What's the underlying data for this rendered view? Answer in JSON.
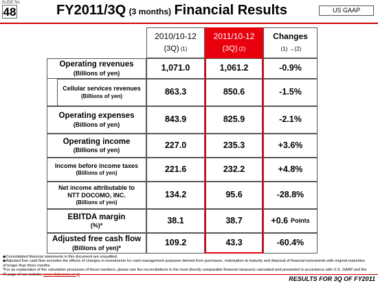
{
  "header": {
    "slide_label": "SLIDE No.",
    "slide_number": "48",
    "title_main": "FY2011/3Q",
    "title_period": "(3 months)",
    "title_rest": "Financial Results",
    "badge": "US GAAP"
  },
  "table": {
    "columns": [
      {
        "period": "2010/10-12",
        "quarter": "(3Q)",
        "note": "(1)"
      },
      {
        "period": "2011/10-12",
        "quarter": "(3Q)",
        "note": "(2)"
      },
      {
        "period": "Changes",
        "note": "(1) →(2)"
      }
    ],
    "rows": [
      {
        "label": [
          "Operating revenues"
        ],
        "unit": "(Billions of yen)",
        "values": [
          "1,071.0",
          "1,061.2",
          "-0.9%"
        ]
      },
      {
        "label": [
          "Cellular services revenues"
        ],
        "unit": "(Billions of yen)",
        "values": [
          "863.3",
          "850.6",
          "-1.5%"
        ]
      },
      {
        "label": [
          "Operating expenses"
        ],
        "unit": "(Billions of yen)",
        "values": [
          "843.9",
          "825.9",
          "-2.1%"
        ]
      },
      {
        "label": [
          "Operating income"
        ],
        "unit": "(Billions of yen)",
        "values": [
          "227.0",
          "235.3",
          "+3.6%"
        ]
      },
      {
        "label": [
          "Income before income taxes"
        ],
        "unit": "(Billions of yen)",
        "values": [
          "221.6",
          "232.2",
          "+4.8%"
        ]
      },
      {
        "label": [
          "Net income attributable to",
          "NTT DOCOMO, INC."
        ],
        "unit": "(Billions of yen)",
        "values": [
          "134.2",
          "95.6",
          "-28.8%"
        ]
      },
      {
        "label": [
          "EBITDA margin"
        ],
        "unit": "(%)*",
        "values": [
          "38.1",
          "38.7",
          "+0.6"
        ],
        "change_unit": "Points"
      },
      {
        "label": [
          "Adjusted free cash flow"
        ],
        "unit": "(Billions of yen)*",
        "values": [
          "109.2",
          "43.3",
          "-60.4%"
        ]
      }
    ]
  },
  "footnotes": [
    {
      "text": "◆Consolidated financial statements in this document are unaudited."
    },
    {
      "text": "◆Adjusted free cash flow excludes the effects of changes in investments for cash management purposes derived from purchases, redemption at maturity and disposal of financial instruments with original maturities of longer than three months."
    },
    {
      "text": "*For an explanation of the calculation processes of these numbers, please see the reconciliations to the most directly comparable financial measures calculated and presented in accordance with U.S. GAAP and the IR page of our website, ",
      "link": "www.nttdocomo.co.jp"
    }
  ],
  "footer": "RESULTS FOR 3Q OF FY2011"
}
